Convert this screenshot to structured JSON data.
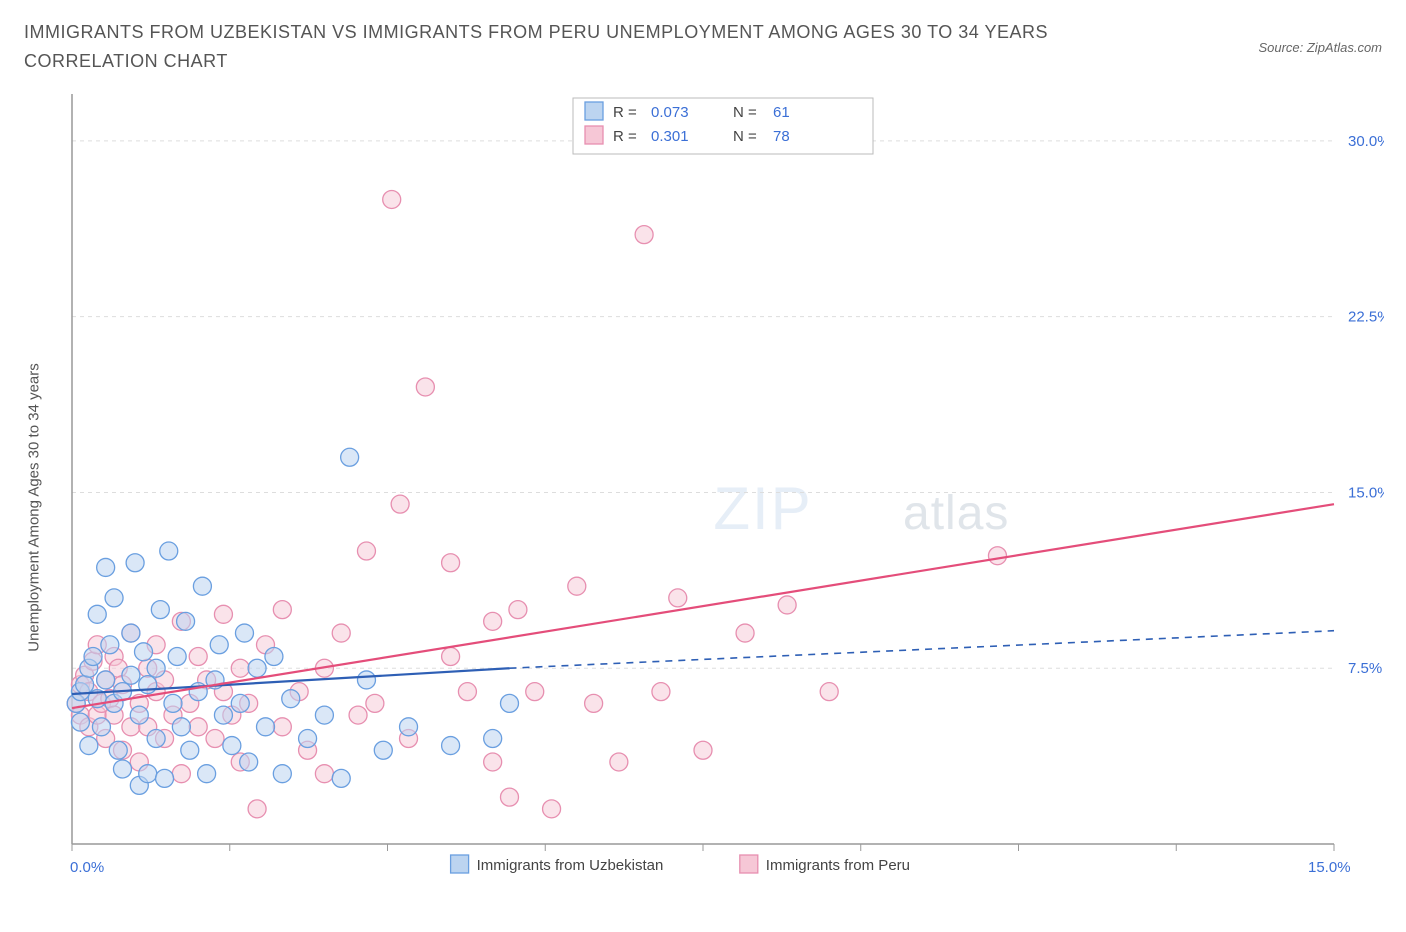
{
  "header": {
    "title": "IMMIGRANTS FROM UZBEKISTAN VS IMMIGRANTS FROM PERU UNEMPLOYMENT AMONG AGES 30 TO 34 YEARS CORRELATION CHART",
    "source_label": "Source: ZipAtlas.com"
  },
  "chart": {
    "type": "scatter",
    "ylabel": "Unemployment Among Ages 30 to 34 years",
    "background_color": "#ffffff",
    "grid_color": "#dddddd",
    "axis_color": "#999999",
    "xlim": [
      0,
      15
    ],
    "ylim": [
      0,
      32
    ],
    "ytick_values": [
      7.5,
      15.0,
      22.5,
      30.0
    ],
    "ytick_labels": [
      "7.5%",
      "15.0%",
      "22.5%",
      "30.0%"
    ],
    "xtick_values": [
      0,
      1.875,
      3.75,
      5.625,
      7.5,
      9.375,
      11.25,
      13.125,
      15
    ],
    "x_origin_label": "0.0%",
    "x_max_label": "15.0%",
    "watermark_a": "ZIP",
    "watermark_b": "atlas",
    "legend_top": {
      "series": [
        {
          "swatch_fill": "#bcd4f0",
          "swatch_stroke": "#6a9fe0",
          "r_label": "R =",
          "r_value": "0.073",
          "n_label": "N =",
          "n_value": "61"
        },
        {
          "swatch_fill": "#f6c7d6",
          "swatch_stroke": "#e78fb0",
          "r_label": "R =",
          "r_value": "0.301",
          "n_label": "N =",
          "n_value": "78"
        }
      ]
    },
    "bottom_legend": [
      {
        "swatch_fill": "#bcd4f0",
        "swatch_stroke": "#6a9fe0",
        "label": "Immigrants from Uzbekistan"
      },
      {
        "swatch_fill": "#f6c7d6",
        "swatch_stroke": "#e78fb0",
        "label": "Immigrants from Peru"
      }
    ],
    "series_a": {
      "name": "Immigrants from Uzbekistan",
      "marker_fill": "#bcd4f0",
      "marker_stroke": "#6a9fe0",
      "marker_fill_opacity": 0.55,
      "marker_radius": 9,
      "trend_color": "#2e5fb5",
      "trend_width": 2.2,
      "trend_solid": {
        "x1": 0,
        "y1": 6.4,
        "x2": 5.2,
        "y2": 7.5
      },
      "trend_dash": {
        "x1": 5.2,
        "y1": 7.5,
        "x2": 15,
        "y2": 9.1
      },
      "points": [
        [
          0.05,
          6.0
        ],
        [
          0.1,
          6.5
        ],
        [
          0.1,
          5.2
        ],
        [
          0.15,
          6.8
        ],
        [
          0.2,
          7.5
        ],
        [
          0.2,
          4.2
        ],
        [
          0.25,
          8.0
        ],
        [
          0.3,
          6.2
        ],
        [
          0.3,
          9.8
        ],
        [
          0.35,
          5.0
        ],
        [
          0.4,
          11.8
        ],
        [
          0.4,
          7.0
        ],
        [
          0.45,
          8.5
        ],
        [
          0.5,
          6.0
        ],
        [
          0.5,
          10.5
        ],
        [
          0.55,
          4.0
        ],
        [
          0.6,
          3.2
        ],
        [
          0.6,
          6.5
        ],
        [
          0.7,
          7.2
        ],
        [
          0.7,
          9.0
        ],
        [
          0.75,
          12.0
        ],
        [
          0.8,
          2.5
        ],
        [
          0.8,
          5.5
        ],
        [
          0.85,
          8.2
        ],
        [
          0.9,
          6.8
        ],
        [
          0.9,
          3.0
        ],
        [
          1.0,
          4.5
        ],
        [
          1.0,
          7.5
        ],
        [
          1.05,
          10.0
        ],
        [
          1.1,
          2.8
        ],
        [
          1.15,
          12.5
        ],
        [
          1.2,
          6.0
        ],
        [
          1.25,
          8.0
        ],
        [
          1.3,
          5.0
        ],
        [
          1.35,
          9.5
        ],
        [
          1.4,
          4.0
        ],
        [
          1.5,
          6.5
        ],
        [
          1.55,
          11.0
        ],
        [
          1.6,
          3.0
        ],
        [
          1.7,
          7.0
        ],
        [
          1.75,
          8.5
        ],
        [
          1.8,
          5.5
        ],
        [
          1.9,
          4.2
        ],
        [
          2.0,
          6.0
        ],
        [
          2.05,
          9.0
        ],
        [
          2.1,
          3.5
        ],
        [
          2.2,
          7.5
        ],
        [
          2.3,
          5.0
        ],
        [
          2.4,
          8.0
        ],
        [
          2.5,
          3.0
        ],
        [
          2.6,
          6.2
        ],
        [
          2.8,
          4.5
        ],
        [
          3.0,
          5.5
        ],
        [
          3.2,
          2.8
        ],
        [
          3.3,
          16.5
        ],
        [
          3.5,
          7.0
        ],
        [
          3.7,
          4.0
        ],
        [
          4.0,
          5.0
        ],
        [
          4.5,
          4.2
        ],
        [
          5.0,
          4.5
        ],
        [
          5.2,
          6.0
        ]
      ]
    },
    "series_b": {
      "name": "Immigrants from Peru",
      "marker_fill": "#f6c7d6",
      "marker_stroke": "#e78fb0",
      "marker_fill_opacity": 0.5,
      "marker_radius": 9,
      "trend_color": "#e44d7a",
      "trend_width": 2.2,
      "trend_solid": {
        "x1": 0,
        "y1": 5.8,
        "x2": 15,
        "y2": 14.5
      },
      "points": [
        [
          0.05,
          6.0
        ],
        [
          0.1,
          5.5
        ],
        [
          0.1,
          6.8
        ],
        [
          0.15,
          7.2
        ],
        [
          0.2,
          5.0
        ],
        [
          0.2,
          6.5
        ],
        [
          0.25,
          7.8
        ],
        [
          0.3,
          5.5
        ],
        [
          0.3,
          8.5
        ],
        [
          0.35,
          6.0
        ],
        [
          0.4,
          4.5
        ],
        [
          0.4,
          7.0
        ],
        [
          0.45,
          6.2
        ],
        [
          0.5,
          8.0
        ],
        [
          0.5,
          5.5
        ],
        [
          0.55,
          7.5
        ],
        [
          0.6,
          4.0
        ],
        [
          0.6,
          6.8
        ],
        [
          0.7,
          5.0
        ],
        [
          0.7,
          9.0
        ],
        [
          0.8,
          6.0
        ],
        [
          0.8,
          3.5
        ],
        [
          0.9,
          7.5
        ],
        [
          0.9,
          5.0
        ],
        [
          1.0,
          6.5
        ],
        [
          1.0,
          8.5
        ],
        [
          1.1,
          4.5
        ],
        [
          1.1,
          7.0
        ],
        [
          1.2,
          5.5
        ],
        [
          1.3,
          9.5
        ],
        [
          1.3,
          3.0
        ],
        [
          1.4,
          6.0
        ],
        [
          1.5,
          8.0
        ],
        [
          1.5,
          5.0
        ],
        [
          1.6,
          7.0
        ],
        [
          1.7,
          4.5
        ],
        [
          1.8,
          9.8
        ],
        [
          1.8,
          6.5
        ],
        [
          1.9,
          5.5
        ],
        [
          2.0,
          3.5
        ],
        [
          2.0,
          7.5
        ],
        [
          2.1,
          6.0
        ],
        [
          2.2,
          1.5
        ],
        [
          2.3,
          8.5
        ],
        [
          2.5,
          5.0
        ],
        [
          2.5,
          10.0
        ],
        [
          2.7,
          6.5
        ],
        [
          2.8,
          4.0
        ],
        [
          3.0,
          7.5
        ],
        [
          3.0,
          3.0
        ],
        [
          3.2,
          9.0
        ],
        [
          3.4,
          5.5
        ],
        [
          3.5,
          12.5
        ],
        [
          3.6,
          6.0
        ],
        [
          3.8,
          27.5
        ],
        [
          3.9,
          14.5
        ],
        [
          4.0,
          4.5
        ],
        [
          4.2,
          19.5
        ],
        [
          4.5,
          8.0
        ],
        [
          4.5,
          12.0
        ],
        [
          4.7,
          6.5
        ],
        [
          5.0,
          3.5
        ],
        [
          5.0,
          9.5
        ],
        [
          5.2,
          2.0
        ],
        [
          5.3,
          10.0
        ],
        [
          5.5,
          6.5
        ],
        [
          5.7,
          1.5
        ],
        [
          6.0,
          11.0
        ],
        [
          6.2,
          6.0
        ],
        [
          6.5,
          3.5
        ],
        [
          6.8,
          26.0
        ],
        [
          7.0,
          6.5
        ],
        [
          7.2,
          10.5
        ],
        [
          7.5,
          4.0
        ],
        [
          8.0,
          9.0
        ],
        [
          8.5,
          10.2
        ],
        [
          9.0,
          6.5
        ],
        [
          11.0,
          12.3
        ]
      ]
    }
  }
}
